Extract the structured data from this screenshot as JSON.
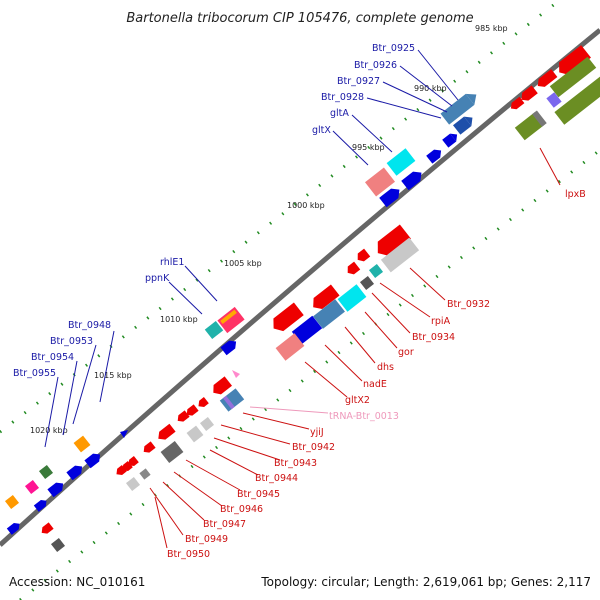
{
  "title": "Bartonella tribocorum CIP 105476, complete genome",
  "footer": {
    "accession": "Accession: NC_010161",
    "summary": "Topology: circular; Length: 2,619,061 bp; Genes: 2,117"
  },
  "colors": {
    "backbone": "#666666",
    "tick": "#228B22",
    "forward_label": "#1a1aa6",
    "reverse_label": "#cc1111",
    "rna_label": "#ee99bb"
  },
  "tick_labels": [
    "985 kbp",
    "990 kbp",
    "995 kbp",
    "1000 kbp",
    "1005 kbp",
    "1010 kbp",
    "1015 kbp",
    "1020 kbp"
  ],
  "forward_labels": [
    "Btr_0925",
    "Btr_0926",
    "Btr_0927",
    "Btr_0928",
    "gltA",
    "gltX",
    "rhlE1",
    "ppnK",
    "Btr_0948",
    "Btr_0953",
    "Btr_0954",
    "Btr_0955"
  ],
  "reverse_labels": [
    "lpxB",
    "Btr_0932",
    "rpiA",
    "Btr_0934",
    "gor",
    "dhs",
    "nadE",
    "gltX2",
    "yjiJ",
    "Btr_0942",
    "Btr_0943",
    "Btr_0944",
    "Btr_0945",
    "Btr_0946",
    "Btr_0947",
    "Btr_0949",
    "Btr_0950"
  ],
  "rna_labels": [
    "tRNA-Btr_0013"
  ]
}
